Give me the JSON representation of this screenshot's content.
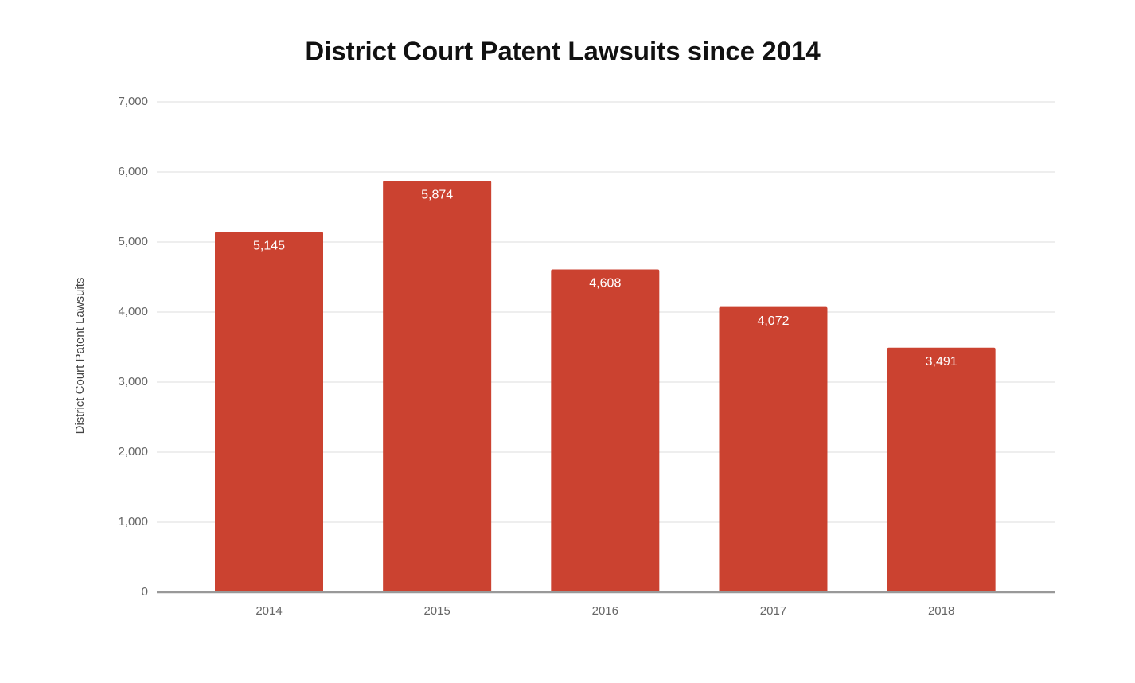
{
  "chart_data": {
    "type": "bar",
    "title": "District Court Patent Lawsuits since 2014",
    "y_label": "District Court Patent Lawsuits",
    "categories": [
      "2014",
      "2015",
      "2016",
      "2017",
      "2018"
    ],
    "values": [
      5145,
      5874,
      4608,
      4072,
      3491
    ],
    "value_labels": [
      "5,145",
      "5,874",
      "4,608",
      "4,072",
      "3,491"
    ],
    "color": "#cb4230",
    "ylim": [
      0,
      7000
    ],
    "yticks": [
      0,
      {
        "value": 1000,
        "label": "1,000"
      },
      {
        "value": 2000,
        "label": "2,000"
      },
      {
        "value": 3000,
        "label": "3,000"
      },
      {
        "value": 4000,
        "label": "4,000"
      },
      {
        "value": 5000,
        "label": "5,000"
      },
      {
        "value": 6000,
        "label": "6,000"
      },
      {
        "value": 7000,
        "label": "7,000"
      }
    ],
    "grid": true
  }
}
